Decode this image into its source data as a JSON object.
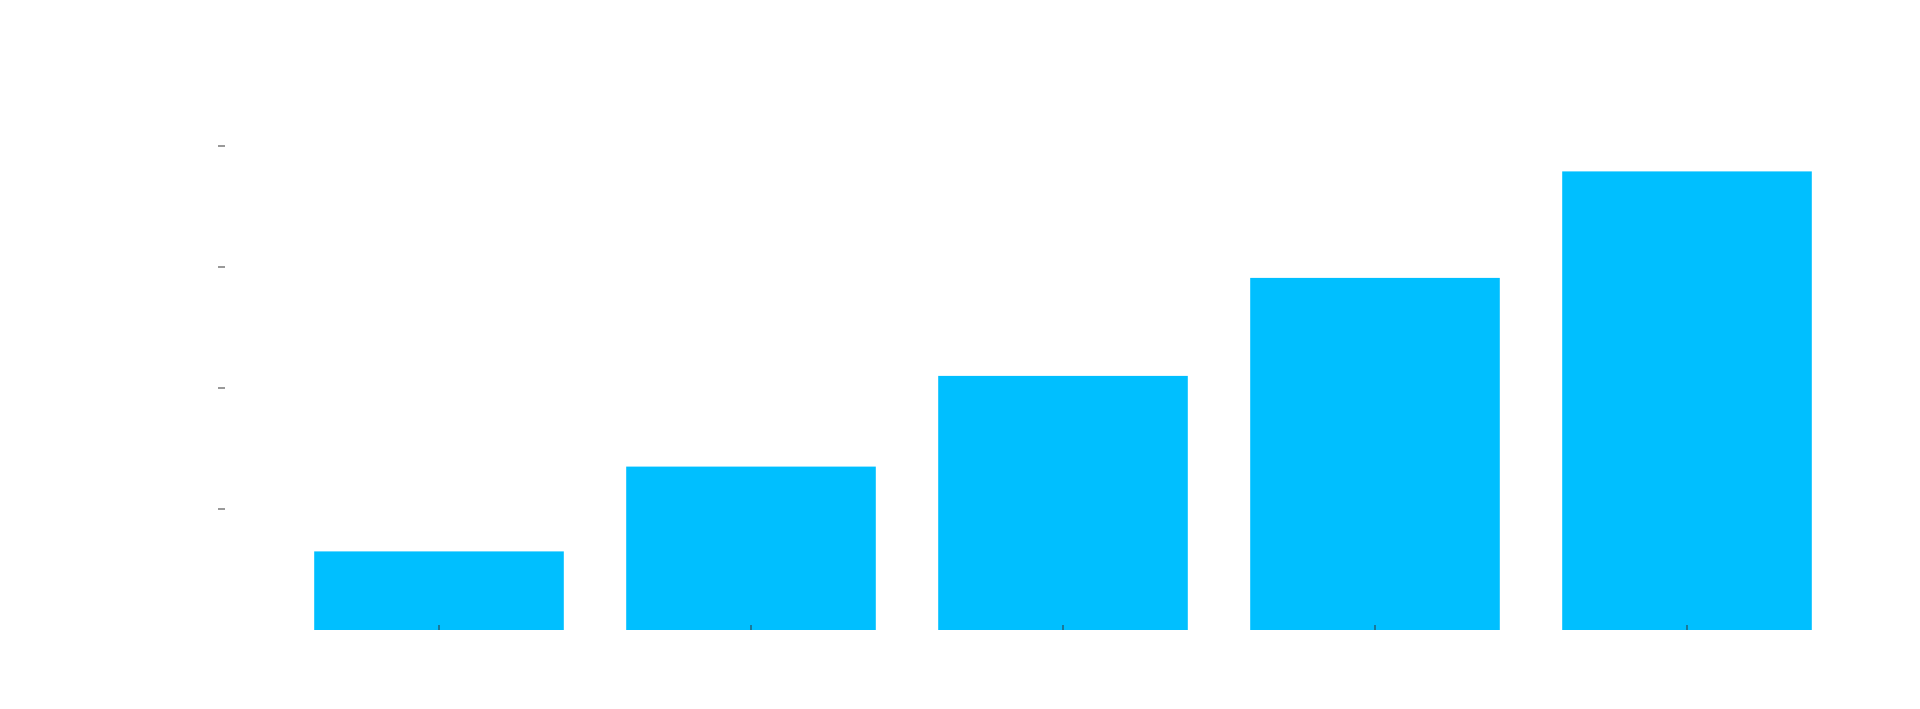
{
  "chart_data": {
    "type": "bar",
    "categories": [
      "",
      "",
      "",
      "",
      ""
    ],
    "values": [
      0.65,
      1.35,
      2.1,
      2.91,
      3.79
    ],
    "ylim": [
      0,
      4
    ],
    "y_ticks": [
      1,
      2,
      3,
      4
    ],
    "grid": false,
    "colors": {
      "bar": "#00BFFF",
      "tick": "#333333",
      "background": "#FFFFFF"
    }
  }
}
